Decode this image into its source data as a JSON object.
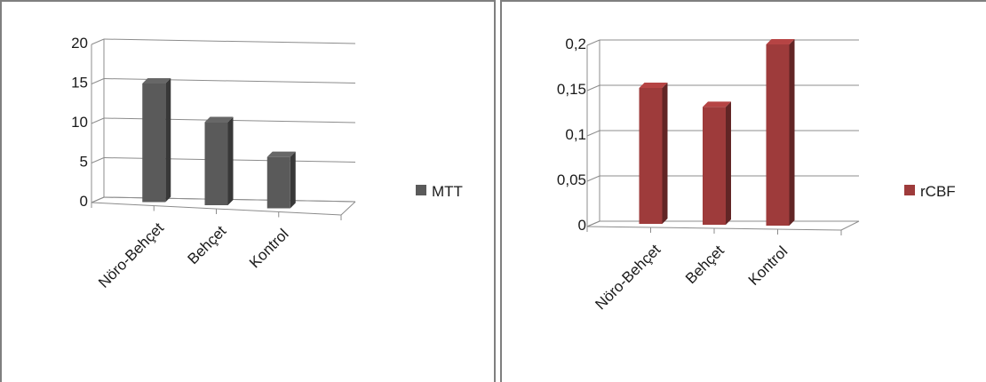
{
  "chart_data": [
    {
      "type": "bar",
      "categories": [
        "Nöro-Behçet",
        "Behçet",
        "Kontrol"
      ],
      "series": [
        {
          "name": "MTT",
          "values": [
            15,
            10.5,
            6.5
          ],
          "color": "#5a5a5a"
        }
      ],
      "ylim": [
        0,
        20
      ],
      "yticks": [
        "0",
        "5",
        "10",
        "15",
        "20"
      ],
      "grid": true,
      "legend": "right",
      "style": "3d"
    },
    {
      "type": "bar",
      "categories": [
        "Nöro-Behçet",
        "Behçet",
        "Kontrol"
      ],
      "series": [
        {
          "name": "rCBF",
          "values": [
            0.15,
            0.13,
            0.2
          ],
          "color": "#9e3b3b"
        }
      ],
      "ylim": [
        0,
        0.2
      ],
      "yticks": [
        "0",
        "0,05",
        "0,1",
        "0,15",
        "0,2"
      ],
      "grid": true,
      "legend": "right",
      "style": "3d"
    }
  ]
}
